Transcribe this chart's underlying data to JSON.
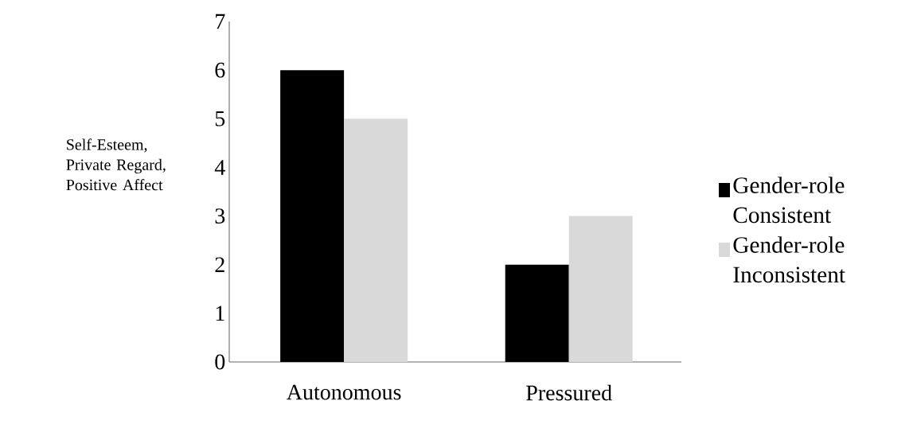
{
  "chart_data": {
    "type": "bar",
    "ylabel": "Self-Esteem, Private Regard, Positive Affect",
    "categories": [
      "Autonomous",
      "Pressured"
    ],
    "series": [
      {
        "name": "Gender-role Consistent",
        "color": "#000000",
        "values": [
          6,
          2
        ]
      },
      {
        "name": "Gender-role Inconsistent",
        "color": "#d9d9d9",
        "values": [
          5,
          3
        ]
      }
    ],
    "ylim": [
      0,
      7
    ],
    "yticks": [
      0,
      1,
      2,
      3,
      4,
      5,
      6,
      7
    ],
    "legend": "right"
  }
}
